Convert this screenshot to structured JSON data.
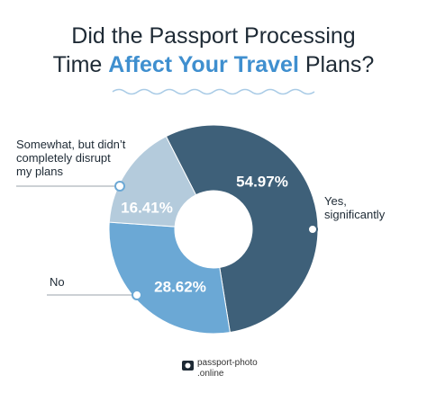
{
  "chart_data": {
    "type": "donut",
    "title": {
      "line1": "Did the Passport Processing",
      "line2_start": "Time",
      "highlight": "Affect Your Travel",
      "line2_end": "Plans?"
    },
    "categories": [
      "Yes,\nsignificantly",
      "No",
      "Somewhat, but didn’t\ncompletely disrupt\nmy plans"
    ],
    "values": [
      54.97,
      28.62,
      16.41
    ],
    "value_labels": [
      "54.97%",
      "28.62%",
      "16.41%"
    ],
    "colors": [
      "#3e6079",
      "#6ba8d5",
      "#b4cbdc"
    ]
  },
  "footer": {
    "line1": "passport-photo",
    "line2": ".online"
  }
}
